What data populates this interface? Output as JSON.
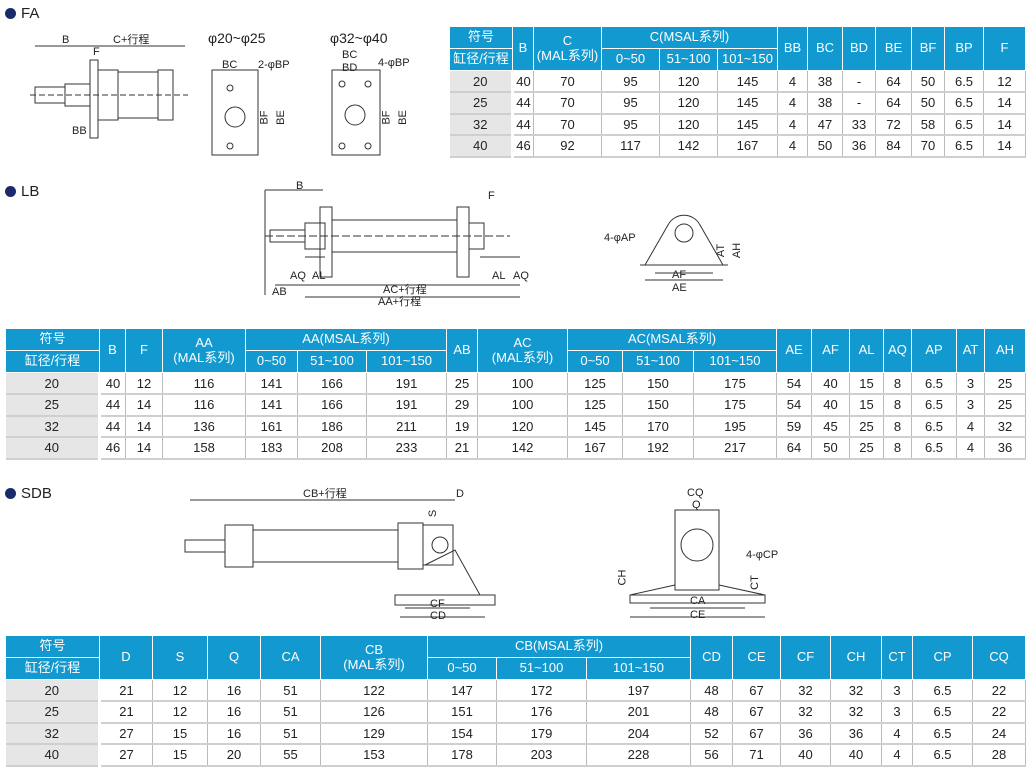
{
  "sections": {
    "fa": "FA",
    "lb": "LB",
    "sdb": "SDB"
  },
  "colors": {
    "header_bg": "#1299cf",
    "first_col_bg": "#e6e6e6",
    "bullet": "#1b2a6b"
  },
  "fa_drawing": {
    "b": "B",
    "c_stroke": "C+行程",
    "f": "F",
    "bb": "BB",
    "small_title": "φ20~φ25",
    "bc1": "BC",
    "bp1": "2-φBP",
    "bf1": "BF",
    "be1": "BE",
    "large_title": "φ32~φ40",
    "bc2": "BC",
    "bd2": "BD",
    "bp2": "4-φBP",
    "bf2": "BF",
    "be2": "BE"
  },
  "lb_drawing": {
    "b": "B",
    "f": "F",
    "aq1": "AQ",
    "al1": "AL",
    "al2": "AL",
    "aq2": "AQ",
    "ab": "AB",
    "ac_stroke": "AC+行程",
    "aa_stroke": "AA+行程",
    "ap": "4-φAP",
    "at": "AT",
    "ah": "AH",
    "af": "AF",
    "ae": "AE"
  },
  "sdb_drawing": {
    "cb_stroke": "CB+行程",
    "s": "S",
    "d": "D",
    "cf": "CF",
    "cd": "CD",
    "cq": "CQ",
    "q": "Q",
    "ch": "CH",
    "cp": "4-φCP",
    "ct": "CT",
    "ca": "CA",
    "ce": "CE"
  },
  "tables": {
    "fa": {
      "corner": [
        "符号",
        "缸径/行程"
      ],
      "group_col": 2,
      "group_label": "C(MSAL系列)",
      "sub": [
        "0~50",
        "51~100",
        "101~150"
      ],
      "cols_before": [
        "B",
        "C\n(MAL系列)"
      ],
      "cols_after": [
        "BB",
        "BC",
        "BD",
        "BE",
        "BF",
        "BP",
        "F"
      ],
      "rows": [
        [
          "20",
          "40",
          "70",
          "95",
          "120",
          "145",
          "4",
          "38",
          "-",
          "64",
          "50",
          "6.5",
          "12"
        ],
        [
          "25",
          "44",
          "70",
          "95",
          "120",
          "145",
          "4",
          "38",
          "-",
          "64",
          "50",
          "6.5",
          "14"
        ],
        [
          "32",
          "44",
          "70",
          "95",
          "120",
          "145",
          "4",
          "47",
          "33",
          "72",
          "58",
          "6.5",
          "14"
        ],
        [
          "40",
          "46",
          "92",
          "117",
          "142",
          "167",
          "4",
          "50",
          "36",
          "84",
          "70",
          "6.5",
          "14"
        ]
      ]
    },
    "lb": {
      "corner": [
        "符号",
        "缸径/行程"
      ],
      "headers": [
        "B",
        "F",
        "AA\n(MAL系列)",
        {
          "group": "AA(MSAL系列)",
          "sub": [
            "0~50",
            "51~100",
            "101~150"
          ]
        },
        "AB",
        "AC\n(MAL系列)",
        {
          "group": "AC(MSAL系列)",
          "sub": [
            "0~50",
            "51~100",
            "101~150"
          ]
        },
        "AE",
        "AF",
        "AL",
        "AQ",
        "AP",
        "AT",
        "AH"
      ],
      "rows": [
        [
          "20",
          "40",
          "12",
          "116",
          "141",
          "166",
          "191",
          "25",
          "100",
          "125",
          "150",
          "175",
          "54",
          "40",
          "15",
          "8",
          "6.5",
          "3",
          "25"
        ],
        [
          "25",
          "44",
          "14",
          "116",
          "141",
          "166",
          "191",
          "29",
          "100",
          "125",
          "150",
          "175",
          "54",
          "40",
          "15",
          "8",
          "6.5",
          "3",
          "25"
        ],
        [
          "32",
          "44",
          "14",
          "136",
          "161",
          "186",
          "211",
          "19",
          "120",
          "145",
          "170",
          "195",
          "59",
          "45",
          "25",
          "8",
          "6.5",
          "4",
          "32"
        ],
        [
          "40",
          "46",
          "14",
          "158",
          "183",
          "208",
          "233",
          "21",
          "142",
          "167",
          "192",
          "217",
          "64",
          "50",
          "25",
          "8",
          "6.5",
          "4",
          "36"
        ]
      ]
    },
    "sdb": {
      "corner": [
        "符号",
        "缸径/行程"
      ],
      "headers": [
        "D",
        "S",
        "Q",
        "CA",
        "CB\n(MAL系列)",
        {
          "group": "CB(MSAL系列)",
          "sub": [
            "0~50",
            "51~100",
            "101~150"
          ]
        },
        "CD",
        "CE",
        "CF",
        "CH",
        "CT",
        "CP",
        "CQ"
      ],
      "rows": [
        [
          "20",
          "21",
          "12",
          "16",
          "51",
          "122",
          "147",
          "172",
          "197",
          "48",
          "67",
          "32",
          "32",
          "3",
          "6.5",
          "22"
        ],
        [
          "25",
          "21",
          "12",
          "16",
          "51",
          "126",
          "151",
          "176",
          "201",
          "48",
          "67",
          "32",
          "32",
          "3",
          "6.5",
          "22"
        ],
        [
          "32",
          "27",
          "15",
          "16",
          "51",
          "129",
          "154",
          "179",
          "204",
          "52",
          "67",
          "36",
          "36",
          "4",
          "6.5",
          "24"
        ],
        [
          "40",
          "27",
          "15",
          "20",
          "55",
          "153",
          "178",
          "203",
          "228",
          "56",
          "71",
          "40",
          "40",
          "4",
          "6.5",
          "28"
        ]
      ]
    }
  }
}
